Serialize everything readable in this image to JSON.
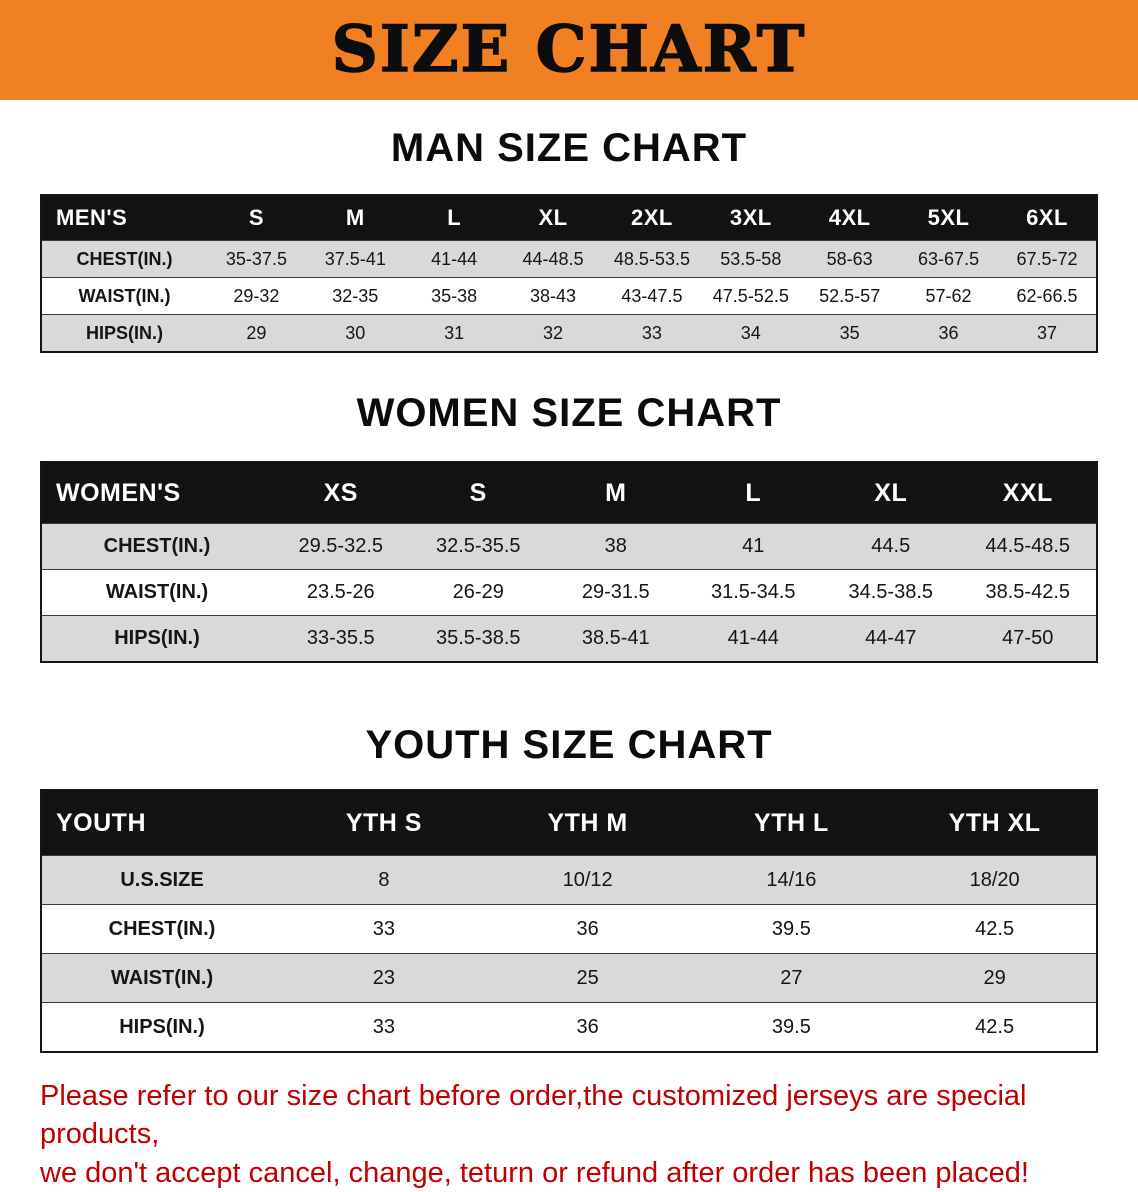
{
  "banner": {
    "title": "SIZE CHART",
    "bg_color": "#f08021",
    "text_color": "#0d0d0d"
  },
  "sections": [
    {
      "heading": "MAN SIZE CHART",
      "table": {
        "header": [
          "MEN'S",
          "S",
          "M",
          "L",
          "XL",
          "2XL",
          "3XL",
          "4XL",
          "5XL",
          "6XL"
        ],
        "rows": [
          [
            "CHEST(IN.)",
            "35-37.5",
            "37.5-41",
            "41-44",
            "44-48.5",
            "48.5-53.5",
            "53.5-58",
            "58-63",
            "63-67.5",
            "67.5-72"
          ],
          [
            "WAIST(IN.)",
            "29-32",
            "32-35",
            "35-38",
            "38-43",
            "43-47.5",
            "47.5-52.5",
            "52.5-57",
            "57-62",
            "62-66.5"
          ],
          [
            "HIPS(IN.)",
            "29",
            "30",
            "31",
            "32",
            "33",
            "34",
            "35",
            "36",
            "37"
          ]
        ]
      }
    },
    {
      "heading": "WOMEN SIZE CHART",
      "table": {
        "header": [
          "WOMEN'S",
          "XS",
          "S",
          "M",
          "L",
          "XL",
          "XXL"
        ],
        "rows": [
          [
            "CHEST(IN.)",
            "29.5-32.5",
            "32.5-35.5",
            "38",
            "41",
            "44.5",
            "44.5-48.5"
          ],
          [
            "WAIST(IN.)",
            "23.5-26",
            "26-29",
            "29-31.5",
            "31.5-34.5",
            "34.5-38.5",
            "38.5-42.5"
          ],
          [
            "HIPS(IN.)",
            "33-35.5",
            "35.5-38.5",
            "38.5-41",
            "41-44",
            "44-47",
            "47-50"
          ]
        ]
      }
    },
    {
      "heading": "YOUTH SIZE CHART",
      "table": {
        "header": [
          "YOUTH",
          "YTH S",
          "YTH M",
          "YTH L",
          "YTH XL"
        ],
        "rows": [
          [
            "U.S.SIZE",
            "8",
            "10/12",
            "14/16",
            "18/20"
          ],
          [
            "CHEST(IN.)",
            "33",
            "36",
            "39.5",
            "42.5"
          ],
          [
            "WAIST(IN.)",
            "23",
            "25",
            "27",
            "29"
          ],
          [
            "HIPS(IN.)",
            "33",
            "36",
            "39.5",
            "42.5"
          ]
        ]
      }
    }
  ],
  "notice": {
    "line1": "Please refer to our size chart before order,the customized jerseys are special products,",
    "line2": "we don't accept cancel, change, teturn or refund after order has been placed!",
    "color": "#c00000"
  }
}
